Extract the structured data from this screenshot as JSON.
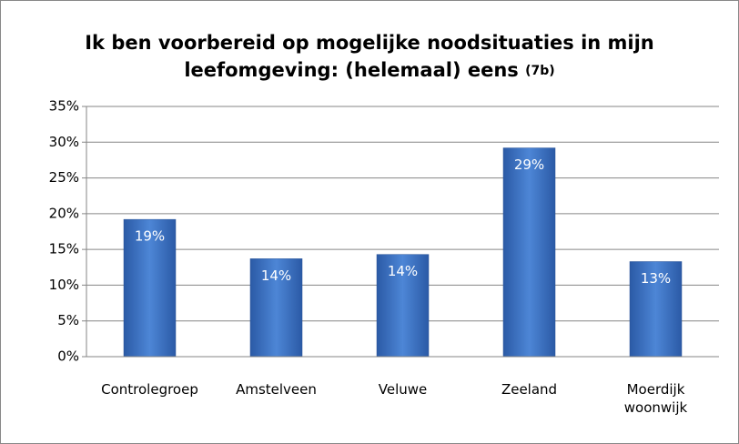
{
  "chart_data": {
    "type": "bar",
    "title": "Ik ben voorbereid op mogelijke noodsituaties in mijn leefomgeving: (helemaal) eens",
    "title_note": "(7b)",
    "categories": [
      "Controlegroep",
      "Amstelveen",
      "Veluwe",
      "Zeeland",
      "Moerdijk woonwijk"
    ],
    "values": [
      19.2,
      13.7,
      14.3,
      29.2,
      13.3
    ],
    "value_labels": [
      "19%",
      "14%",
      "14%",
      "29%",
      "13%"
    ],
    "color": "#3a6fc4",
    "ylim": [
      0,
      35
    ],
    "yticks": [
      {
        "value": 0,
        "label": "0%"
      },
      {
        "value": 5,
        "label": "5%"
      },
      {
        "value": 10,
        "label": "10%"
      },
      {
        "value": 15,
        "label": "15%"
      },
      {
        "value": 20,
        "label": "20%"
      },
      {
        "value": 25,
        "label": "25%"
      },
      {
        "value": 30,
        "label": "30%"
      },
      {
        "value": 35,
        "label": "35%"
      }
    ],
    "grid": true
  }
}
